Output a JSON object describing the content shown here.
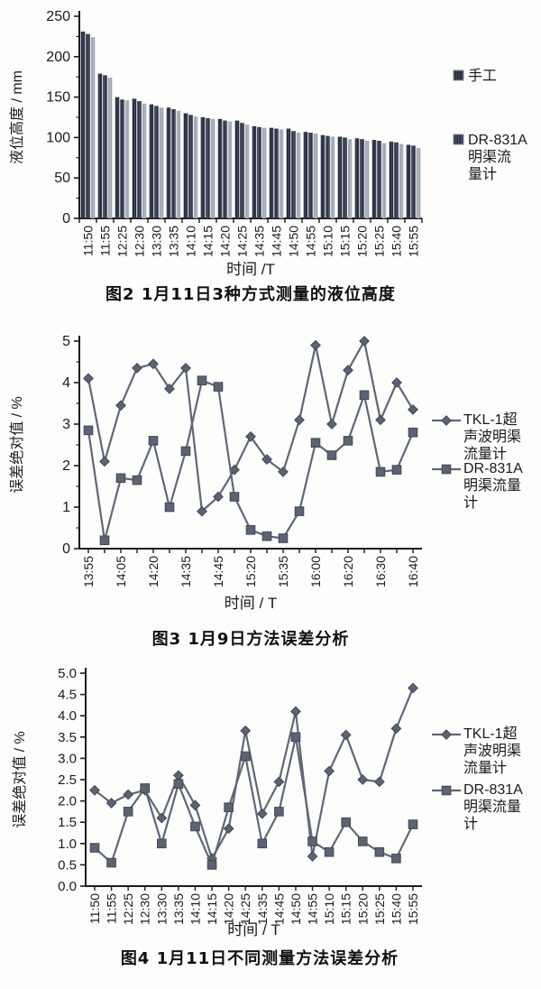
{
  "colors": {
    "axis": "#1b1b1b",
    "line": "#5f6777",
    "marker_fill": "#5c6373",
    "marker_stroke": "#414755",
    "bar_dark1": "#262b3b",
    "bar_dark2": "#2d3346",
    "bar_light": "#9ca3af"
  },
  "chart_data": [
    {
      "id": "fig2",
      "type": "bar",
      "caption": "图2  1月11日3种方式测量的液位高度",
      "xlabel": "时间 /T",
      "ylabel": "液位高度 / mm",
      "ylim": [
        0,
        250
      ],
      "ytick_step": 50,
      "yminor_step": 25,
      "ytick_decimals": 0,
      "categories": [
        "11:50",
        "11:55",
        "12:25",
        "12:30",
        "13:30",
        "13:35",
        "14:10",
        "14:15",
        "14:20",
        "14:25",
        "14:35",
        "14:45",
        "14:50",
        "14:55",
        "15:10",
        "15:15",
        "15:20",
        "15:25",
        "15:40",
        "15:55"
      ],
      "series": [
        {
          "name": "手工",
          "values": [
            231,
            179,
            150,
            148,
            141,
            137,
            130,
            125,
            123,
            121,
            114,
            112,
            111,
            107,
            103,
            101,
            99,
            97,
            95,
            91
          ]
        },
        {
          "name": "",
          "values": [
            228,
            177,
            147,
            145,
            139,
            135,
            128,
            124,
            121,
            118,
            113,
            111,
            108,
            106,
            102,
            100,
            98,
            96,
            94,
            90
          ]
        },
        {
          "name": "DR-831A明渠流量计",
          "values": [
            224,
            174,
            146,
            142,
            137,
            133,
            126,
            123,
            120,
            116,
            112,
            110,
            106,
            105,
            101,
            98,
            96,
            93,
            92,
            87
          ]
        }
      ],
      "legend": [
        {
          "marker": "swatch-dark",
          "label_lines": [
            "手工"
          ]
        },
        {
          "marker": "swatch-dark2",
          "label_lines": [
            "DR-831A",
            "明渠流",
            "量计"
          ]
        }
      ],
      "legend_position": "right",
      "grid": false
    },
    {
      "id": "fig3",
      "type": "line",
      "caption": "图3  1月9日方法误差分析",
      "xlabel": "时间 / T",
      "ylabel": "误差绝对值 / %",
      "ylim": [
        0,
        5
      ],
      "ytick_step": 1,
      "yminor_step": 0.5,
      "ytick_decimals": 0,
      "categories": [
        "13:55",
        "",
        "14:05",
        "",
        "14:20",
        "",
        "14:35",
        "",
        "14:45",
        "",
        "15:20",
        "",
        "15:35",
        "",
        "16:00",
        "",
        "16:20",
        "",
        "16:30",
        "",
        "16:40"
      ],
      "series": [
        {
          "name": "TKL-1超声波明渠流量计",
          "marker": "diamond",
          "values": [
            4.1,
            2.1,
            3.45,
            4.35,
            4.45,
            3.85,
            4.35,
            0.9,
            1.25,
            1.9,
            2.7,
            2.15,
            1.85,
            3.1,
            4.9,
            3.0,
            4.3,
            5.0,
            3.1,
            4.0,
            3.35
          ]
        },
        {
          "name": "DR-831A明渠流量计",
          "marker": "square",
          "values": [
            2.85,
            0.2,
            1.7,
            1.65,
            2.6,
            1.0,
            2.35,
            4.05,
            3.9,
            1.25,
            0.45,
            0.3,
            0.25,
            0.9,
            2.55,
            2.25,
            2.6,
            3.7,
            1.85,
            1.9,
            2.8
          ]
        }
      ],
      "legend": [
        {
          "marker": "diamond",
          "label_lines": [
            "TKL-1超",
            "声波明渠",
            "流量计"
          ]
        },
        {
          "marker": "square",
          "label_lines": [
            "DR-831A",
            "明渠流量",
            "计"
          ]
        }
      ],
      "legend_position": "right",
      "grid": false
    },
    {
      "id": "fig4",
      "type": "line",
      "caption": "图4  1月11日不同测量方法误差分析",
      "xlabel": "时间 / T",
      "ylabel": "误差绝对值 / %",
      "ylim": [
        0,
        5
      ],
      "ytick_step": 0.5,
      "yminor_step": 0,
      "ytick_decimals": 1,
      "categories": [
        "11:50",
        "11:55",
        "12:25",
        "12:30",
        "13:30",
        "13:35",
        "14:10",
        "14:15",
        "14:20",
        "14:25",
        "14:35",
        "14:45",
        "14:50",
        "14:55",
        "15:10",
        "15:15",
        "15:20",
        "15:25",
        "15:40",
        "15:55"
      ],
      "series": [
        {
          "name": "TKL-1超声波明渠流量计",
          "marker": "diamond",
          "values": [
            2.25,
            1.95,
            2.15,
            2.25,
            1.6,
            2.6,
            1.9,
            0.65,
            1.35,
            3.65,
            1.7,
            2.45,
            4.1,
            0.7,
            2.7,
            3.55,
            2.5,
            2.45,
            3.7,
            4.65
          ]
        },
        {
          "name": "DR-831A明渠流量计",
          "marker": "square",
          "values": [
            0.9,
            0.55,
            1.75,
            2.3,
            1.0,
            2.4,
            1.4,
            0.5,
            1.85,
            3.05,
            1.0,
            1.75,
            3.5,
            1.05,
            0.8,
            1.5,
            1.05,
            0.8,
            0.65,
            1.45
          ]
        }
      ],
      "legend": [
        {
          "marker": "diamond",
          "label_lines": [
            "TKL-1超",
            "声波明渠",
            "流量计"
          ]
        },
        {
          "marker": "square",
          "label_lines": [
            "DR-831A",
            "明渠流量",
            "计"
          ]
        }
      ],
      "legend_position": "right",
      "grid": false
    }
  ]
}
